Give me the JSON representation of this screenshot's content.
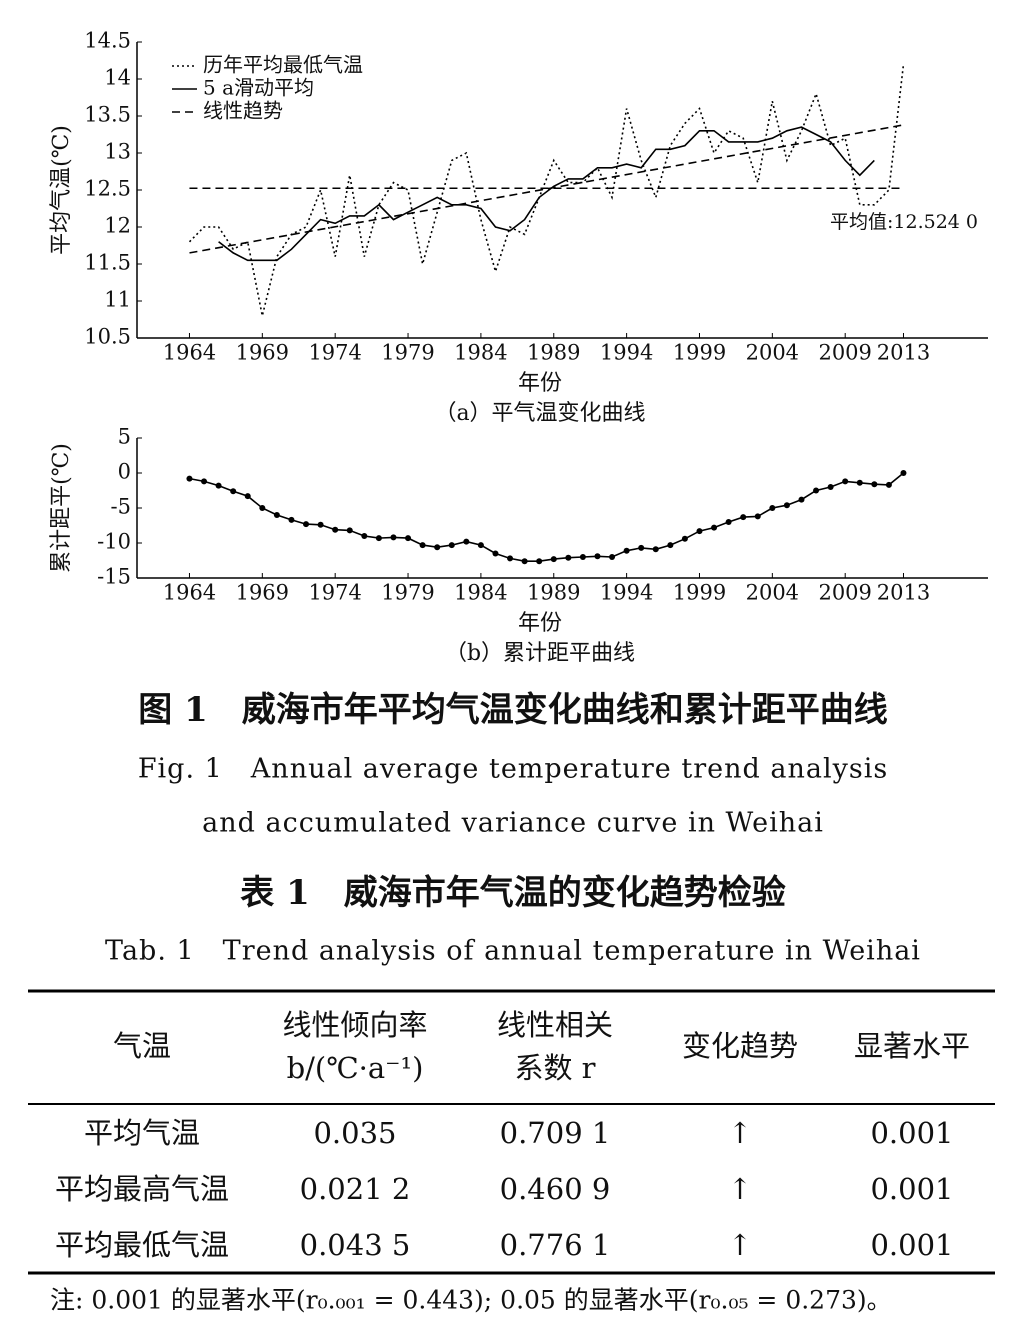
{
  "chart_data": [
    {
      "type": "line",
      "ylabel": "平均气温(℃)",
      "xlabel": "年份",
      "caption": "（a）平气温变化曲线",
      "x": [
        1964,
        1965,
        1966,
        1967,
        1968,
        1969,
        1970,
        1971,
        1972,
        1973,
        1974,
        1975,
        1976,
        1977,
        1978,
        1979,
        1980,
        1981,
        1982,
        1983,
        1984,
        1985,
        1986,
        1987,
        1988,
        1989,
        1990,
        1991,
        1992,
        1993,
        1994,
        1995,
        1996,
        1997,
        1998,
        1999,
        2000,
        2001,
        2002,
        2003,
        2004,
        2005,
        2006,
        2007,
        2008,
        2009,
        2010,
        2011,
        2012,
        2013
      ],
      "xlim": [
        1960.4,
        2018.8
      ],
      "xticks": [
        1964,
        1969,
        1974,
        1979,
        1984,
        1989,
        1994,
        1999,
        2004,
        2009,
        2013
      ],
      "ylim": [
        10.5,
        14.5
      ],
      "yticks": [
        10.5,
        11,
        11.5,
        12,
        12.5,
        13,
        13.5,
        14,
        14.5
      ],
      "legend": "upper left",
      "series": [
        {
          "name": "历年平均最低气温",
          "color": "#000000",
          "style": "dotted",
          "values": [
            11.8,
            12.0,
            12.0,
            11.7,
            11.8,
            10.8,
            11.6,
            11.9,
            12.0,
            12.5,
            11.6,
            12.7,
            11.6,
            12.3,
            12.6,
            12.5,
            11.5,
            12.2,
            12.9,
            13.0,
            12.1,
            11.4,
            12.0,
            11.9,
            12.4,
            12.9,
            12.6,
            12.6,
            12.8,
            12.4,
            13.6,
            12.9,
            12.4,
            13.1,
            13.4,
            13.6,
            13.0,
            13.3,
            13.2,
            12.6,
            13.7,
            12.9,
            13.3,
            13.8,
            13.1,
            13.2,
            12.3,
            12.3,
            12.5,
            14.2
          ]
        },
        {
          "name": "5 a滑动平均",
          "color": "#000000",
          "style": "solid",
          "values": [
            null,
            null,
            11.8,
            11.65,
            11.55,
            11.55,
            11.55,
            11.7,
            11.9,
            12.1,
            12.05,
            12.15,
            12.15,
            12.3,
            12.1,
            12.2,
            12.3,
            12.4,
            12.3,
            12.3,
            12.25,
            12.0,
            11.95,
            12.1,
            12.4,
            12.55,
            12.65,
            12.65,
            12.8,
            12.8,
            12.85,
            12.8,
            13.05,
            13.05,
            13.1,
            13.3,
            13.3,
            13.15,
            13.15,
            13.15,
            13.2,
            13.3,
            13.35,
            13.25,
            13.15,
            12.9,
            12.7,
            12.9,
            null,
            null
          ]
        },
        {
          "name": "线性趋势",
          "color": "#000000",
          "style": "dashed",
          "x": [
            1964,
            2013
          ],
          "values": [
            11.65,
            13.38
          ]
        }
      ],
      "mean": {
        "value": 12.524,
        "label": "平均值:12.524 0"
      }
    },
    {
      "type": "line",
      "ylabel": "累计距平(℃)",
      "xlabel": "年份",
      "caption": "（b）累计距平曲线",
      "x": [
        1964,
        1965,
        1966,
        1967,
        1968,
        1969,
        1970,
        1971,
        1972,
        1973,
        1974,
        1975,
        1976,
        1977,
        1978,
        1979,
        1980,
        1981,
        1982,
        1983,
        1984,
        1985,
        1986,
        1987,
        1988,
        1989,
        1990,
        1991,
        1992,
        1993,
        1994,
        1995,
        1996,
        1997,
        1998,
        1999,
        2000,
        2001,
        2002,
        2003,
        2004,
        2005,
        2006,
        2007,
        2008,
        2009,
        2010,
        2011,
        2012,
        2013
      ],
      "xlim": [
        1960.4,
        2018.8
      ],
      "xticks": [
        1964,
        1969,
        1974,
        1979,
        1984,
        1989,
        1994,
        1999,
        2004,
        2009,
        2013
      ],
      "ylim": [
        -15,
        5
      ],
      "yticks": [
        5,
        0,
        -5,
        -10,
        -15
      ],
      "series": [
        {
          "color": "#000000",
          "style": "solid",
          "markers": true,
          "values": [
            -0.8,
            -1.2,
            -1.8,
            -2.6,
            -3.3,
            -5.0,
            -6.0,
            -6.7,
            -7.3,
            -7.4,
            -8.1,
            -8.2,
            -9.0,
            -9.3,
            -9.2,
            -9.3,
            -10.3,
            -10.6,
            -10.3,
            -9.8,
            -10.3,
            -11.5,
            -12.2,
            -12.6,
            -12.6,
            -12.3,
            -12.1,
            -12.0,
            -11.9,
            -12.0,
            -11.1,
            -10.7,
            -10.9,
            -10.3,
            -9.4,
            -8.3,
            -7.8,
            -7.0,
            -6.3,
            -6.2,
            -5.0,
            -4.6,
            -3.8,
            -2.5,
            -2.0,
            -1.2,
            -1.4,
            -1.6,
            -1.7,
            0
          ]
        }
      ]
    }
  ],
  "figure": {
    "title": "图 1　威海市年平均气温变化曲线和累计距平曲线",
    "title_en": [
      "Fig. 1　Annual average temperature trend analysis",
      "and accumulated variance curve in Weihai"
    ]
  },
  "table": {
    "title": "表 1　威海市年气温的变化趋势检验",
    "title_en": "Tab. 1　Trend analysis of annual temperature in Weihai",
    "columns": [
      [
        "气温"
      ],
      [
        "线性倾向率",
        "b/(℃·a⁻¹)"
      ],
      [
        "线性相关",
        "系数 r"
      ],
      [
        "变化趋势"
      ],
      [
        "显著水平"
      ]
    ],
    "rows": [
      [
        "平均气温",
        "0.035",
        "0.709 1",
        "↑",
        "0.001"
      ],
      [
        "平均最高气温",
        "0.021 2",
        "0.460 9",
        "↑",
        "0.001"
      ],
      [
        "平均最低气温",
        "0.043 5",
        "0.776 1",
        "↑",
        "0.001"
      ]
    ]
  },
  "note": "注: 0.001 的显著水平(r₀.₀₀₁ = 0.443); 0.05 的显著水平(r₀.₀₅ = 0.273)。"
}
